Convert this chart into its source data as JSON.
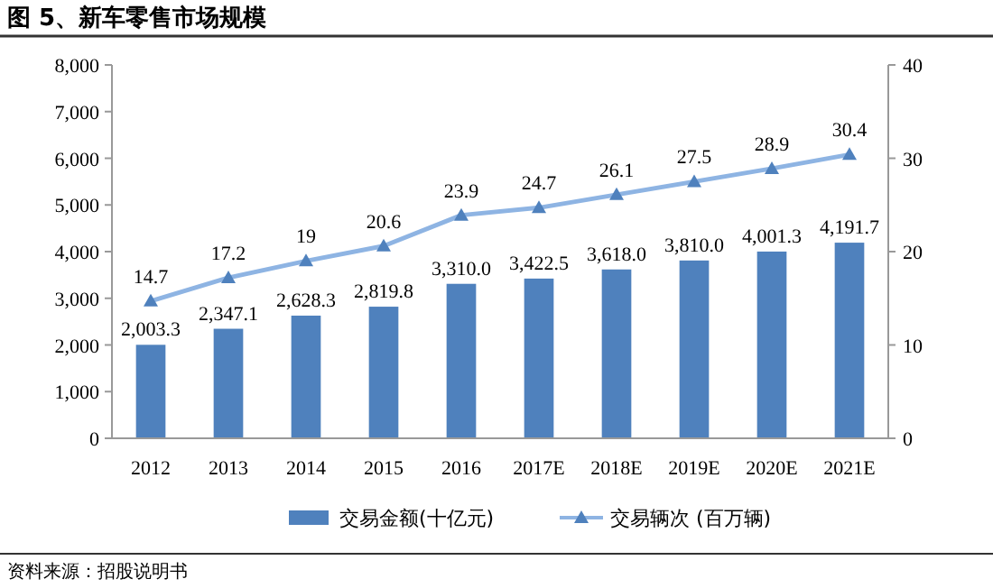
{
  "chart_data": {
    "type": "bar",
    "title": "图 5、新车零售市场规模",
    "annotations": [
      "资料来源：招股说明书"
    ],
    "categories": [
      "2012",
      "2013",
      "2014",
      "2015",
      "2016",
      "2017E",
      "2018E",
      "2019E",
      "2020E",
      "2021E"
    ],
    "series": [
      {
        "name": "交易金额(十亿元)",
        "color": "#4f81bd",
        "values": [
          2003.3,
          2347.1,
          2628.3,
          2819.8,
          3310.0,
          3422.5,
          3618.0,
          3810.0,
          4001.3,
          4191.7
        ],
        "value_labels": [
          "2,003.3",
          "2,347.1",
          "2,628.3",
          "2,819.8",
          "3,310.0",
          "3,422.5",
          "3,618.0",
          "3,810.0",
          "4,001.3",
          "4,191.7"
        ]
      },
      {
        "name": "交易辆次 (百万辆)",
        "type": "line",
        "axis": "y2",
        "color": "#8eb4e3",
        "marker": "triangle",
        "values": [
          14.7,
          17.2,
          19,
          20.6,
          23.9,
          24.7,
          26.1,
          27.5,
          28.9,
          30.4
        ],
        "value_labels": [
          "14.7",
          "17.2",
          "19",
          "20.6",
          "23.9",
          "24.7",
          "26.1",
          "27.5",
          "28.9",
          "30.4"
        ]
      }
    ],
    "ylim": [
      0,
      8000
    ],
    "yticks": [
      {
        "value": 0,
        "label": "0"
      },
      {
        "value": 1000,
        "label": "1,000"
      },
      {
        "value": 2000,
        "label": "2,000"
      },
      {
        "value": 3000,
        "label": "3,000"
      },
      {
        "value": 4000,
        "label": "4,000"
      },
      {
        "value": 5000,
        "label": "5,000"
      },
      {
        "value": 6000,
        "label": "6,000"
      },
      {
        "value": 7000,
        "label": "7,000"
      },
      {
        "value": 8000,
        "label": "8,000"
      }
    ],
    "y2lim": [
      0,
      40
    ],
    "y2ticks": [
      0,
      10,
      20,
      30,
      40
    ],
    "legend": "bottom",
    "grid": false
  }
}
